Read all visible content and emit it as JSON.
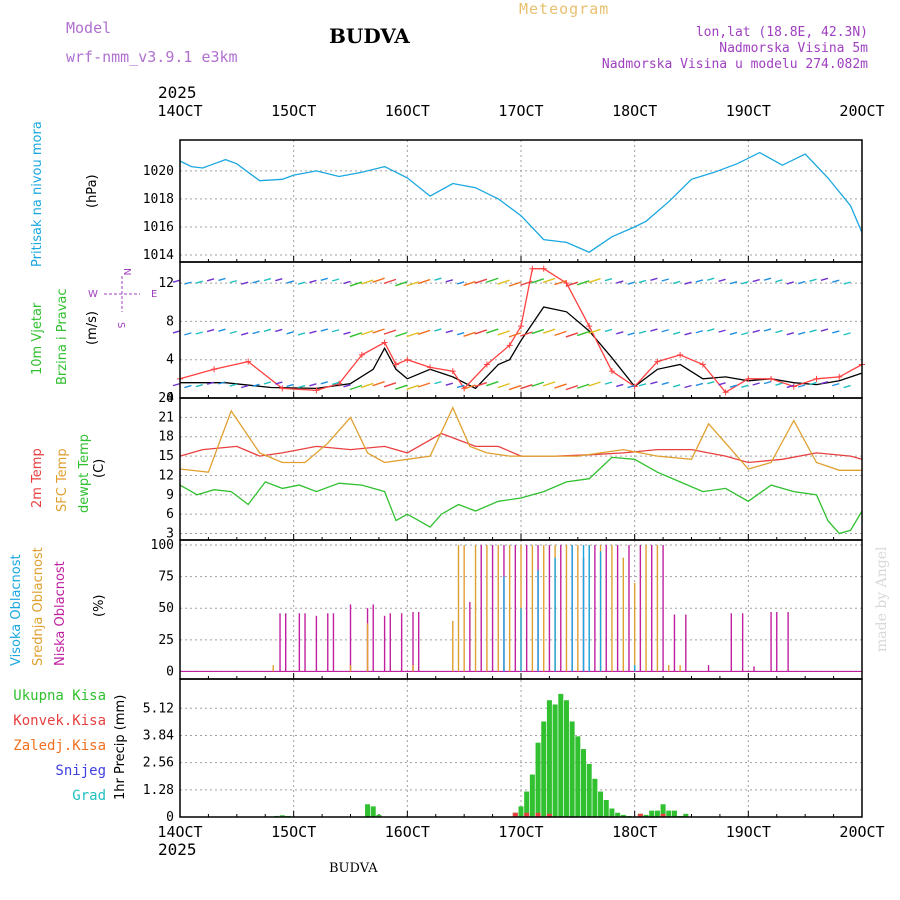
{
  "header": {
    "model_label": "Model",
    "model_name": "wrf-nmm_v3.9.1 e3km",
    "city": "BUDVA",
    "title": "Meteogram",
    "location": "lon,lat (18.8E, 42.3N)",
    "elevation": "Nadmorska Visina 5m",
    "model_elevation": "Nadmorska Visina u modelu 274.082m",
    "year_top": "2025",
    "year_bottom": "2025",
    "footer_city": "BUDVA",
    "credit": "made by Angel"
  },
  "colors": {
    "pressure": "#1aa7e0",
    "temp2m": "#e84040",
    "sfc": "#e0a030",
    "dewpt": "#30c030",
    "wind_line": "#000000",
    "gust": "#ff4040",
    "high_cloud": "#1aa7e0",
    "mid_cloud": "#e0a030",
    "low_cloud": "#c020a0",
    "total_rain": "#30c030",
    "conv_rain": "#e84040",
    "freezing": "#f07020",
    "snow": "#4040e0",
    "hail": "#20c0c0"
  },
  "chart_data": [
    {
      "type": "line",
      "panel": "pressure",
      "ylabel": [
        "Pritisak na nivou mora",
        "(hPa)"
      ],
      "x_ticks": [
        "14OCT",
        "15OCT",
        "16OCT",
        "17OCT",
        "18OCT",
        "19OCT",
        "20OCT"
      ],
      "ylim": [
        1013.5,
        1022.2
      ],
      "y_ticks": [
        1014,
        1016,
        1018,
        1020
      ],
      "series": [
        {
          "name": "pressure",
          "x": [
            0,
            0.1,
            0.2,
            0.3,
            0.4,
            0.5,
            0.7,
            0.9,
            1.0,
            1.2,
            1.4,
            1.6,
            1.8,
            2.0,
            2.2,
            2.4,
            2.6,
            2.8,
            3.0,
            3.2,
            3.4,
            3.6,
            3.8,
            4.0,
            4.1,
            4.3,
            4.5,
            4.7,
            4.9,
            5.1,
            5.3,
            5.5,
            5.7,
            5.9,
            6.0
          ],
          "y": [
            1020.7,
            1020.3,
            1020.2,
            1020.5,
            1020.8,
            1020.5,
            1019.3,
            1019.4,
            1019.7,
            1020.0,
            1019.6,
            1019.9,
            1020.3,
            1019.5,
            1018.2,
            1019.1,
            1018.8,
            1018.0,
            1016.8,
            1015.1,
            1014.9,
            1014.2,
            1015.3,
            1016.0,
            1016.4,
            1017.8,
            1019.4,
            1019.9,
            1020.5,
            1021.3,
            1020.4,
            1021.2,
            1019.5,
            1017.5,
            1015.6
          ]
        }
      ]
    },
    {
      "type": "line",
      "panel": "wind",
      "ylabel": [
        "10m Vjetar",
        "Brzina i Pravac",
        "(m/s)"
      ],
      "compass": {
        "n": "N",
        "w": "W",
        "e": "E",
        "s": "S"
      },
      "ylim": [
        0,
        14.2
      ],
      "y_ticks": [
        0,
        4,
        8,
        12
      ],
      "series": [
        {
          "name": "wind speed",
          "x": [
            0,
            0.4,
            0.8,
            1.2,
            1.5,
            1.7,
            1.8,
            1.9,
            2.0,
            2.2,
            2.4,
            2.6,
            2.8,
            2.9,
            3.0,
            3.2,
            3.4,
            3.6,
            3.8,
            4.0,
            4.2,
            4.4,
            4.6,
            4.8,
            5.0,
            5.2,
            5.4,
            5.6,
            5.8,
            6.0
          ],
          "y": [
            1.6,
            1.6,
            1.1,
            1.0,
            1.5,
            3.0,
            5.2,
            3.0,
            2.0,
            3.0,
            2.2,
            1.0,
            3.5,
            4.0,
            6.0,
            9.5,
            9.0,
            7.0,
            4.2,
            1.2,
            3.0,
            3.5,
            2.0,
            2.2,
            1.8,
            2.0,
            1.6,
            1.4,
            1.8,
            2.6
          ]
        },
        {
          "name": "wind gust",
          "x": [
            0,
            0.3,
            0.6,
            0.9,
            1.2,
            1.4,
            1.6,
            1.8,
            1.9,
            2.0,
            2.2,
            2.4,
            2.5,
            2.7,
            2.9,
            3.0,
            3.1,
            3.2,
            3.4,
            3.6,
            3.8,
            4.0,
            4.2,
            4.4,
            4.6,
            4.8,
            5.0,
            5.2,
            5.4,
            5.6,
            5.8,
            6.0
          ],
          "y": [
            2.0,
            3.0,
            3.8,
            1.0,
            0.8,
            1.5,
            4.5,
            5.8,
            3.5,
            4.0,
            3.2,
            2.8,
            1.0,
            3.5,
            5.5,
            7.5,
            13.5,
            13.5,
            12.0,
            7.5,
            2.8,
            1.2,
            3.8,
            4.5,
            3.5,
            0.6,
            2.0,
            2.0,
            1.2,
            2.0,
            2.2,
            3.5
          ]
        }
      ]
    },
    {
      "type": "line",
      "panel": "temperature",
      "ylabel": [
        "2m Temp",
        "SFC Temp",
        "dewpt Temp",
        "(C)"
      ],
      "ylim": [
        2,
        24
      ],
      "y_ticks": [
        3,
        6,
        9,
        12,
        15,
        18,
        21,
        24
      ],
      "series": [
        {
          "name": "2m Temp",
          "x": [
            0,
            0.2,
            0.5,
            0.7,
            0.9,
            1.2,
            1.5,
            1.8,
            2.0,
            2.3,
            2.6,
            2.8,
            3.0,
            3.3,
            3.6,
            3.9,
            4.2,
            4.5,
            4.8,
            5.0,
            5.3,
            5.6,
            5.9,
            6.0
          ],
          "y": [
            15.0,
            16.0,
            16.5,
            15.0,
            15.5,
            16.5,
            16.0,
            16.5,
            15.5,
            18.5,
            16.5,
            16.5,
            15.0,
            15.0,
            15.2,
            15.5,
            16.0,
            16.0,
            15.0,
            14.0,
            14.5,
            15.5,
            15.0,
            14.5
          ]
        },
        {
          "name": "SFC Temp",
          "x": [
            0,
            0.25,
            0.45,
            0.7,
            0.9,
            1.1,
            1.3,
            1.5,
            1.65,
            1.8,
            2.0,
            2.2,
            2.4,
            2.55,
            2.7,
            2.9,
            3.1,
            3.5,
            3.9,
            4.2,
            4.5,
            4.65,
            4.85,
            5.0,
            5.2,
            5.4,
            5.6,
            5.8,
            6.0
          ],
          "y": [
            13.0,
            12.5,
            22.0,
            15.5,
            14.0,
            14.0,
            17.0,
            21.0,
            15.5,
            14.0,
            14.5,
            15.0,
            22.5,
            16.5,
            15.5,
            15.0,
            15.0,
            15.0,
            16.0,
            15.0,
            14.5,
            20.0,
            16.0,
            13.0,
            14.0,
            20.5,
            14.0,
            12.8,
            12.8
          ]
        },
        {
          "name": "dewpt Temp",
          "x": [
            0,
            0.15,
            0.3,
            0.45,
            0.6,
            0.75,
            0.9,
            1.05,
            1.2,
            1.4,
            1.6,
            1.8,
            1.9,
            2.0,
            2.1,
            2.2,
            2.3,
            2.45,
            2.6,
            2.8,
            3.0,
            3.2,
            3.4,
            3.6,
            3.8,
            4.0,
            4.2,
            4.4,
            4.6,
            4.8,
            5.0,
            5.2,
            5.4,
            5.6,
            5.7,
            5.8,
            5.9,
            6.0
          ],
          "y": [
            10.5,
            9.0,
            9.8,
            9.5,
            7.5,
            11.0,
            10.0,
            10.5,
            9.5,
            10.8,
            10.5,
            9.5,
            5.0,
            6.0,
            5.0,
            4.0,
            6.0,
            7.5,
            6.5,
            8.0,
            8.5,
            9.5,
            11.0,
            11.5,
            14.8,
            14.5,
            12.5,
            11.0,
            9.5,
            10.0,
            8.0,
            10.5,
            9.5,
            9.0,
            5.0,
            3.0,
            3.5,
            6.5
          ]
        }
      ]
    },
    {
      "type": "bar",
      "panel": "cloud",
      "ylabel": [
        "Visoka Oblacnost",
        "Srednja Oblacnost",
        "Niska Oblacnost",
        "(%)"
      ],
      "ylim": [
        -6,
        104
      ],
      "y_ticks": [
        0,
        25,
        50,
        75,
        100
      ],
      "series": [
        {
          "name": "Niska Oblacnost",
          "x": [
            0.88,
            0.93,
            1.05,
            1.1,
            1.2,
            1.3,
            1.35,
            1.5,
            1.65,
            1.7,
            1.8,
            1.85,
            1.95,
            2.05,
            2.1,
            2.55,
            2.65,
            2.75,
            2.85,
            2.95,
            3.05,
            3.15,
            3.25,
            3.35,
            3.45,
            3.55,
            3.65,
            3.75,
            3.85,
            3.95,
            4.05,
            4.15,
            4.25,
            4.35,
            4.45,
            4.65,
            4.85,
            4.95,
            5.05,
            5.2,
            5.25,
            5.35
          ],
          "y": [
            46,
            46,
            46,
            46,
            44,
            46,
            46,
            53,
            50,
            53,
            44,
            46,
            46,
            47,
            47,
            55,
            100,
            100,
            100,
            100,
            100,
            100,
            100,
            100,
            100,
            90,
            100,
            100,
            100,
            100,
            100,
            100,
            100,
            45,
            45,
            5,
            46,
            46,
            4,
            47,
            47,
            47
          ]
        },
        {
          "name": "Srednja Oblacnost",
          "x": [
            0.82,
            1.5,
            1.65,
            2.05,
            2.4,
            2.45,
            2.5,
            2.6,
            2.7,
            2.8,
            2.9,
            3.0,
            3.1,
            3.2,
            3.3,
            3.4,
            3.5,
            3.6,
            3.7,
            3.8,
            3.9,
            4.0,
            4.1,
            4.2,
            4.3,
            4.4
          ],
          "y": [
            5,
            5,
            38,
            5,
            40,
            100,
            100,
            100,
            100,
            100,
            100,
            100,
            100,
            100,
            100,
            100,
            100,
            100,
            100,
            100,
            90,
            70,
            100,
            100,
            5,
            5
          ]
        },
        {
          "name": "Visoka Oblacnost",
          "x": [
            2.85,
            3.0,
            3.15,
            3.3,
            3.45,
            3.55,
            3.6,
            3.7,
            4.0
          ],
          "y": [
            75,
            50,
            80,
            90,
            100,
            100,
            100,
            95,
            5
          ]
        }
      ]
    },
    {
      "type": "bar",
      "panel": "precipitation",
      "ylabel": [
        "1hr Precip (mm)"
      ],
      "legend": [
        "Ukupna Kisa",
        "Konvek.Kisa",
        "Zaledj.Kisa",
        "Snijeg",
        "Grad"
      ],
      "ylim": [
        0,
        6.5
      ],
      "y_ticks": [
        0,
        1.28,
        2.56,
        3.84,
        5.12
      ],
      "series": [
        {
          "name": "Ukupna Kisa",
          "x": [
            0.85,
            0.9,
            0.95,
            1.65,
            1.7,
            1.75,
            2.95,
            3.0,
            3.05,
            3.1,
            3.15,
            3.2,
            3.25,
            3.3,
            3.35,
            3.4,
            3.45,
            3.5,
            3.55,
            3.6,
            3.65,
            3.7,
            3.75,
            3.8,
            3.85,
            3.9,
            3.95,
            4.05,
            4.1,
            4.15,
            4.2,
            4.25,
            4.3,
            4.35,
            4.4,
            4.45
          ],
          "y": [
            0.05,
            0.08,
            0.05,
            0.6,
            0.5,
            0.1,
            0.2,
            0.5,
            1.2,
            2.0,
            3.5,
            4.5,
            5.5,
            5.3,
            5.8,
            5.5,
            4.5,
            3.8,
            3.2,
            2.5,
            1.8,
            1.2,
            0.8,
            0.4,
            0.2,
            0.1,
            0.05,
            0.15,
            0.1,
            0.3,
            0.3,
            0.6,
            0.3,
            0.3,
            0.05,
            0.15
          ]
        },
        {
          "name": "Konvek.Kisa",
          "x": [
            2.95,
            3.05,
            3.15,
            3.25,
            4.05,
            4.25
          ],
          "y": [
            0.2,
            0.2,
            0.2,
            0.15,
            0.15,
            0.15
          ]
        }
      ]
    }
  ]
}
